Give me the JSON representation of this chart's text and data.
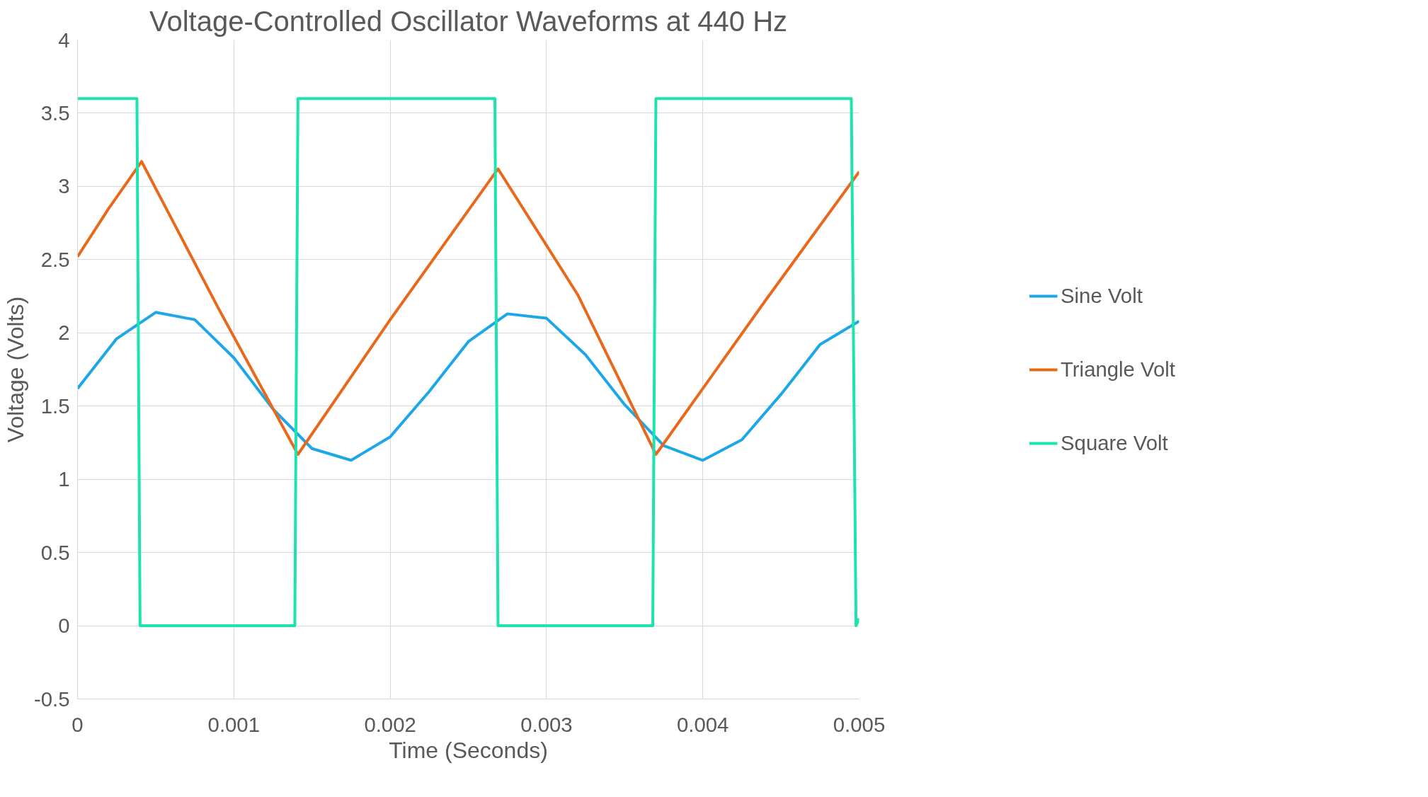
{
  "chart_data": {
    "type": "line",
    "title": "Voltage-Controlled Oscillator Waveforms at 440 Hz",
    "xlabel": "Time (Seconds)",
    "ylabel": "Voltage (Volts)",
    "xlim": [
      0,
      0.005
    ],
    "xticks": [
      0,
      0.001,
      0.002,
      0.003,
      0.004,
      0.005
    ],
    "ylim": [
      -0.5,
      4
    ],
    "yticks": [
      -0.5,
      0,
      0.5,
      1,
      1.5,
      2,
      2.5,
      3,
      3.5,
      4
    ],
    "grid": true,
    "legend": "right",
    "marker": "none",
    "line_style": "solid",
    "series": [
      {
        "name": "Sine Volt",
        "color": "#1ea7e6",
        "x": [
          0,
          0.00025,
          0.0005,
          0.00075,
          0.001,
          0.00125,
          0.0015,
          0.00175,
          0.002,
          0.00225,
          0.0025,
          0.00275,
          0.003,
          0.00325,
          0.0035,
          0.00375,
          0.004,
          0.00425,
          0.0045,
          0.00475,
          0.005
        ],
        "values": [
          1.62,
          1.96,
          2.14,
          2.09,
          1.83,
          1.48,
          1.21,
          1.13,
          1.29,
          1.6,
          1.94,
          2.13,
          2.1,
          1.85,
          1.51,
          1.23,
          1.13,
          1.27,
          1.58,
          1.92,
          2.08
        ]
      },
      {
        "name": "Triangle Volt",
        "color": "#e8691c",
        "x": [
          0,
          0.0002,
          0.00041,
          0.0009,
          0.00141,
          0.002,
          0.00269,
          0.0032,
          0.0037,
          0.0044,
          0.005
        ],
        "values": [
          2.52,
          2.85,
          3.17,
          2.17,
          1.17,
          2.09,
          3.12,
          2.26,
          1.17,
          2.22,
          3.1
        ]
      },
      {
        "name": "Square Volt",
        "color": "#1de3ae",
        "x": [
          0,
          0.00038,
          0.0004,
          0.00139,
          0.00141,
          0.00267,
          0.00269,
          0.00368,
          0.0037,
          0.00495,
          0.00498,
          0.005
        ],
        "values": [
          3.6,
          3.6,
          0,
          0,
          3.6,
          3.6,
          0,
          0,
          3.6,
          3.6,
          0,
          0.05
        ]
      }
    ]
  }
}
